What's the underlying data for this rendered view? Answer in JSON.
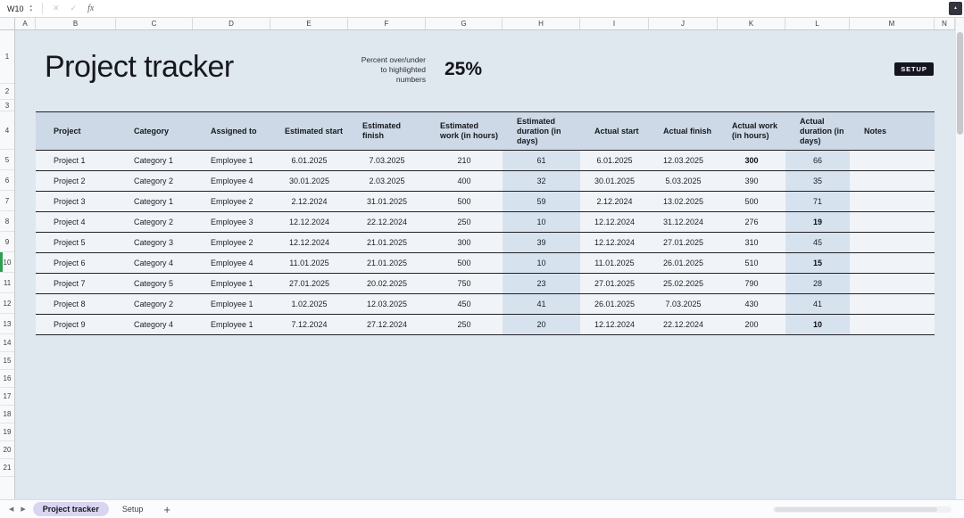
{
  "selected_row": "10",
  "formula_bar": {
    "name_box": "W10",
    "fx": "fx"
  },
  "icons": {
    "cancel": "✕",
    "accept": "✓",
    "spinner_up": "▲",
    "spinner_down": "▼",
    "collapse": "▲",
    "tab_prev": "◀",
    "tab_next": "▶",
    "add_sheet": "+"
  },
  "column_headers": [
    "A",
    "B",
    "C",
    "D",
    "E",
    "F",
    "G",
    "H",
    "I",
    "J",
    "K",
    "L",
    "M",
    "N"
  ],
  "row_headers": [
    "1",
    "2",
    "3",
    "4",
    "5",
    "6",
    "7",
    "8",
    "9",
    "10",
    "11",
    "12",
    "13",
    "14",
    "15",
    "16",
    "17",
    "18",
    "19",
    "20",
    "21"
  ],
  "header_area": {
    "title": "Project tracker",
    "percent_label": "Percent over/under\nto highlighted\nnumbers",
    "percent_value": "25%",
    "setup_button_label": "SETUP"
  },
  "table": {
    "columns": [
      {
        "label": "Project",
        "highlight": false
      },
      {
        "label": "Category",
        "highlight": false
      },
      {
        "label": "Assigned to",
        "highlight": false
      },
      {
        "label": "Estimated start",
        "highlight": false
      },
      {
        "label": "Estimated finish",
        "highlight": false
      },
      {
        "label": "Estimated work (in hours)",
        "highlight": false
      },
      {
        "label": "Estimated duration (in days)",
        "highlight": true
      },
      {
        "label": "Actual start",
        "highlight": false
      },
      {
        "label": "Actual finish",
        "highlight": false
      },
      {
        "label": "Actual work (in hours)",
        "highlight": false
      },
      {
        "label": "Actual duration (in days)",
        "highlight": true
      },
      {
        "label": "Notes",
        "highlight": false
      }
    ],
    "rows": [
      {
        "cells": [
          "Project 1",
          "Category 1",
          "Employee 1",
          "6.01.2025",
          "7.03.2025",
          "210",
          "61",
          "6.01.2025",
          "12.03.2025",
          "300",
          "66",
          ""
        ],
        "bold_cells": [
          9
        ]
      },
      {
        "cells": [
          "Project 2",
          "Category 2",
          "Employee 4",
          "30.01.2025",
          "2.03.2025",
          "400",
          "32",
          "30.01.2025",
          "5.03.2025",
          "390",
          "35",
          ""
        ],
        "bold_cells": []
      },
      {
        "cells": [
          "Project 3",
          "Category 1",
          "Employee 2",
          "2.12.2024",
          "31.01.2025",
          "500",
          "59",
          "2.12.2024",
          "13.02.2025",
          "500",
          "71",
          ""
        ],
        "bold_cells": []
      },
      {
        "cells": [
          "Project 4",
          "Category 2",
          "Employee 3",
          "12.12.2024",
          "22.12.2024",
          "250",
          "10",
          "12.12.2024",
          "31.12.2024",
          "276",
          "19",
          ""
        ],
        "bold_cells": [
          10
        ]
      },
      {
        "cells": [
          "Project 5",
          "Category 3",
          "Employee 2",
          "12.12.2024",
          "21.01.2025",
          "300",
          "39",
          "12.12.2024",
          "27.01.2025",
          "310",
          "45",
          ""
        ],
        "bold_cells": []
      },
      {
        "cells": [
          "Project 6",
          "Category 4",
          "Employee 4",
          "11.01.2025",
          "21.01.2025",
          "500",
          "10",
          "11.01.2025",
          "26.01.2025",
          "510",
          "15",
          ""
        ],
        "bold_cells": [
          10
        ]
      },
      {
        "cells": [
          "Project 7",
          "Category 5",
          "Employee 1",
          "27.01.2025",
          "20.02.2025",
          "750",
          "23",
          "27.01.2025",
          "25.02.2025",
          "790",
          "28",
          ""
        ],
        "bold_cells": []
      },
      {
        "cells": [
          "Project 8",
          "Category 2",
          "Employee 1",
          "1.02.2025",
          "12.03.2025",
          "450",
          "41",
          "26.01.2025",
          "7.03.2025",
          "430",
          "41",
          ""
        ],
        "bold_cells": []
      },
      {
        "cells": [
          "Project 9",
          "Category 4",
          "Employee 1",
          "7.12.2024",
          "27.12.2024",
          "250",
          "20",
          "12.12.2024",
          "22.12.2024",
          "200",
          "10",
          ""
        ],
        "bold_cells": [
          10
        ]
      }
    ]
  },
  "tab_bar": {
    "tabs": [
      {
        "label": "Project tracker",
        "active": true
      },
      {
        "label": "Setup",
        "active": false
      }
    ],
    "add_label": "+"
  },
  "colors": {
    "sheet_bg": "#dfe7ef",
    "header_bg": "#cdd9e6",
    "row_bg": "#f0f4f9",
    "highlight_col_bg": "#d7e2ef",
    "accent_green": "#2f9e4f",
    "active_tab_bg": "#d9d5f0",
    "setup_bg": "#15151f"
  }
}
